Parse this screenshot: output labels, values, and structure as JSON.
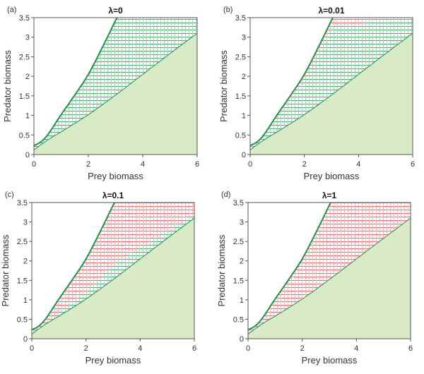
{
  "chart_data": [
    {
      "type": "area",
      "panel_tag": "(a)",
      "title": "λ=0",
      "xlabel": "Prey biomass",
      "ylabel": "Predator biomass",
      "xlim": [
        0,
        6
      ],
      "ylim": [
        0,
        3.5
      ],
      "xticks": [
        0,
        2,
        4,
        6
      ],
      "yticks": [
        0,
        0.5,
        1,
        1.5,
        2,
        2.5,
        3,
        3.5
      ],
      "ytick_labels": [
        "0",
        "0.5",
        "1",
        "1.5",
        "2",
        "2.5",
        "3",
        "3.5"
      ],
      "xtick_labels": [
        "0",
        "2",
        "4",
        "6"
      ],
      "upper_boundary": {
        "x": [
          0,
          0.25,
          0.5,
          1,
          1.5,
          2,
          2.5,
          3.05
        ],
        "y": [
          0.23,
          0.32,
          0.5,
          1.02,
          1.52,
          2.05,
          2.72,
          3.5
        ]
      },
      "lower_boundary": {
        "x": [
          0,
          0.5,
          1,
          2,
          3,
          4,
          5,
          6
        ],
        "y": [
          0.12,
          0.37,
          0.58,
          1.02,
          1.52,
          2.05,
          2.58,
          3.1
        ]
      },
      "red_fraction": 0.0,
      "legend": "none"
    },
    {
      "type": "area",
      "panel_tag": "(b)",
      "title": "λ=0.01",
      "xlabel": "Prey biomass",
      "ylabel": "Predator biomass",
      "xlim": [
        0,
        6
      ],
      "ylim": [
        0,
        3.5
      ],
      "xticks": [
        0,
        2,
        4,
        6
      ],
      "yticks": [
        0,
        0.5,
        1,
        1.5,
        2,
        2.5,
        3,
        3.5
      ],
      "ytick_labels": [
        "0",
        "0.5",
        "1",
        "1.5",
        "2",
        "2.5",
        "3",
        "3.5"
      ],
      "xtick_labels": [
        "0",
        "2",
        "4",
        "6"
      ],
      "upper_boundary": {
        "x": [
          0,
          0.25,
          0.5,
          1,
          1.5,
          2,
          2.5,
          3.05
        ],
        "y": [
          0.23,
          0.32,
          0.5,
          1.02,
          1.52,
          2.05,
          2.72,
          3.5
        ]
      },
      "lower_boundary": {
        "x": [
          0,
          0.5,
          1,
          2,
          3,
          4,
          5,
          6
        ],
        "y": [
          0.12,
          0.37,
          0.58,
          1.02,
          1.52,
          2.05,
          2.58,
          3.1
        ]
      },
      "red_fraction": 0.1,
      "legend": "none"
    },
    {
      "type": "area",
      "panel_tag": "(c)",
      "title": "λ=0.1",
      "xlabel": "Prey biomass",
      "ylabel": "Predator biomass",
      "xlim": [
        0,
        6
      ],
      "ylim": [
        0,
        3.5
      ],
      "xticks": [
        0,
        2,
        4,
        6
      ],
      "yticks": [
        0,
        0.5,
        1,
        1.5,
        2,
        2.5,
        3,
        3.5
      ],
      "ytick_labels": [
        "0",
        "0.5",
        "1",
        "1.5",
        "2",
        "2.5",
        "3",
        "3.5"
      ],
      "xtick_labels": [
        "0",
        "2",
        "4",
        "6"
      ],
      "upper_boundary": {
        "x": [
          0,
          0.25,
          0.5,
          1,
          1.5,
          2,
          2.5,
          3.05
        ],
        "y": [
          0.23,
          0.32,
          0.5,
          1.02,
          1.52,
          2.05,
          2.72,
          3.5
        ]
      },
      "lower_boundary": {
        "x": [
          0,
          0.5,
          1,
          2,
          3,
          4,
          5,
          6
        ],
        "y": [
          0.12,
          0.37,
          0.58,
          1.02,
          1.52,
          2.05,
          2.58,
          3.1
        ]
      },
      "red_fraction": 0.8,
      "legend": "none"
    },
    {
      "type": "area",
      "panel_tag": "(d)",
      "title": "λ=1",
      "xlabel": "Prey biomass",
      "ylabel": "Predator biomass",
      "xlim": [
        0,
        6
      ],
      "ylim": [
        0,
        3.5
      ],
      "xticks": [
        0,
        2,
        4,
        6
      ],
      "yticks": [
        0,
        0.5,
        1,
        1.5,
        2,
        2.5,
        3,
        3.5
      ],
      "ytick_labels": [
        "0",
        "0.5",
        "1",
        "1.5",
        "2",
        "2.5",
        "3",
        "3.5"
      ],
      "xtick_labels": [
        "0",
        "2",
        "4",
        "6"
      ],
      "upper_boundary": {
        "x": [
          0,
          0.25,
          0.5,
          1,
          1.5,
          2,
          2.5,
          3.05
        ],
        "y": [
          0.23,
          0.32,
          0.5,
          1.02,
          1.52,
          2.05,
          2.72,
          3.5
        ]
      },
      "lower_boundary": {
        "x": [
          0,
          0.5,
          1,
          2,
          3,
          4,
          5,
          6
        ],
        "y": [
          0.12,
          0.37,
          0.58,
          1.02,
          1.52,
          2.05,
          2.58,
          3.1
        ]
      },
      "red_fraction": 1.0,
      "legend": "none"
    }
  ],
  "colors": {
    "boundary_line": "#1e9448",
    "green_hatch": "#3fae6a",
    "red_hatch": "#f0646a",
    "safe_fill": "#d9eac6",
    "axis": "#555555"
  }
}
